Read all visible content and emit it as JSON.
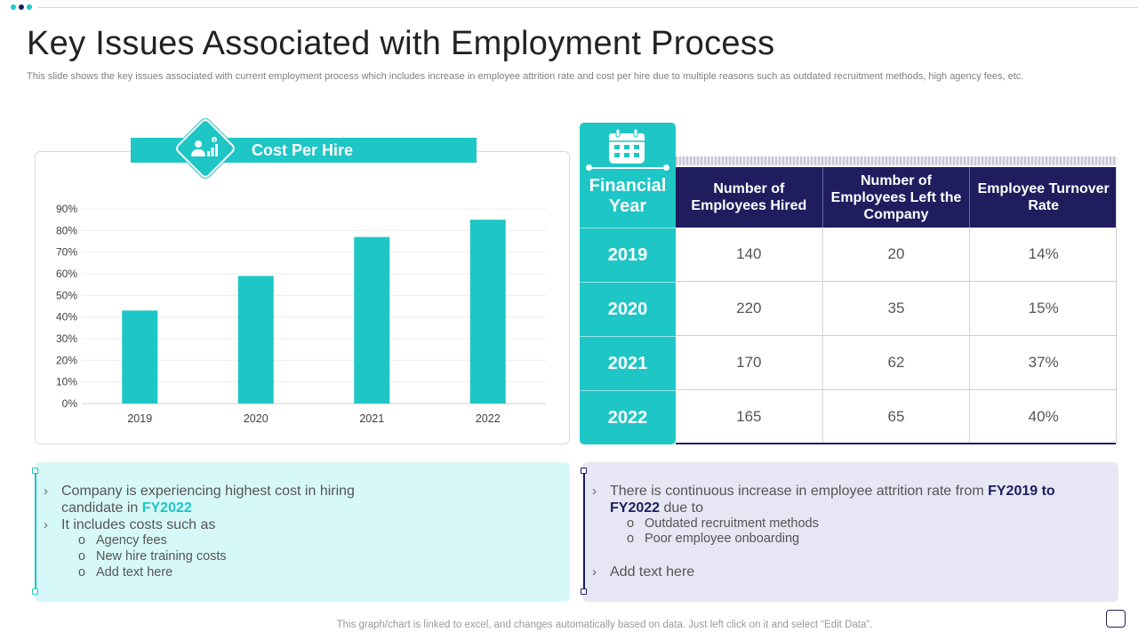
{
  "slide": {
    "title": "Key Issues Associated with Employment Process",
    "subtitle": "This slide shows the key issues associated with current employment process which includes increase in employee attrition rate and cost per hire due to  multiple reasons such as outdated recruitment methods, high agency fees, etc.",
    "footer": "This graph/chart is linked to excel,  and changes automatically based on data. Just left click on it and select “Edit Data”."
  },
  "chart_data": {
    "type": "bar",
    "title": "Cost Per Hire",
    "categories": [
      "2019",
      "2020",
      "2021",
      "2022"
    ],
    "values": [
      43,
      59,
      77,
      85
    ],
    "value_format": "percent",
    "ylim": [
      0,
      90
    ],
    "yticks": [
      0,
      10,
      20,
      30,
      40,
      50,
      60,
      70,
      80,
      90
    ],
    "ytick_labels": [
      "0%",
      "10%",
      "20%",
      "30%",
      "40%",
      "50%",
      "60%",
      "70%",
      "80%",
      "90%"
    ],
    "xlabel": "",
    "ylabel": "",
    "grid": true,
    "color": "#1ec6c6"
  },
  "table": {
    "year_header": "Financial Year",
    "columns": [
      "Number of Employees Hired",
      "Number of Employees  Left the Company",
      "Employee Turnover Rate"
    ],
    "rows": [
      {
        "year": "2019",
        "cells": [
          "140",
          "20",
          "14%"
        ]
      },
      {
        "year": "2020",
        "cells": [
          "220",
          "35",
          "15%"
        ]
      },
      {
        "year": "2021",
        "cells": [
          "170",
          "62",
          "37%"
        ]
      },
      {
        "year": "2022",
        "cells": [
          "165",
          "65",
          "40%"
        ]
      }
    ]
  },
  "left_box": {
    "b1_text": "Company is experiencing highest cost in hiring",
    "b1_line2": "candidate in ",
    "b1_highlight": "FY2022",
    "b2_text": "It includes costs such as",
    "subs": [
      "Agency fees",
      "New hire training costs",
      "Add text here"
    ]
  },
  "right_box": {
    "b1_text": "There is continuous  increase in employee attrition rate from ",
    "b1_highlight_a": "FY2019 to",
    "b1_highlight_b": "FY2022",
    "b1_tail": " due to",
    "subs": [
      "Outdated recruitment methods",
      "Poor employee onboarding"
    ],
    "b2_text": "Add text here"
  },
  "colors": {
    "teal": "#1ec6c6",
    "navy": "#1f1d5e",
    "light_teal_bg": "#d7f8f8",
    "light_lavender_bg": "#e6e6f4"
  },
  "symbols": {
    "chevron": "›",
    "circle": "o"
  }
}
